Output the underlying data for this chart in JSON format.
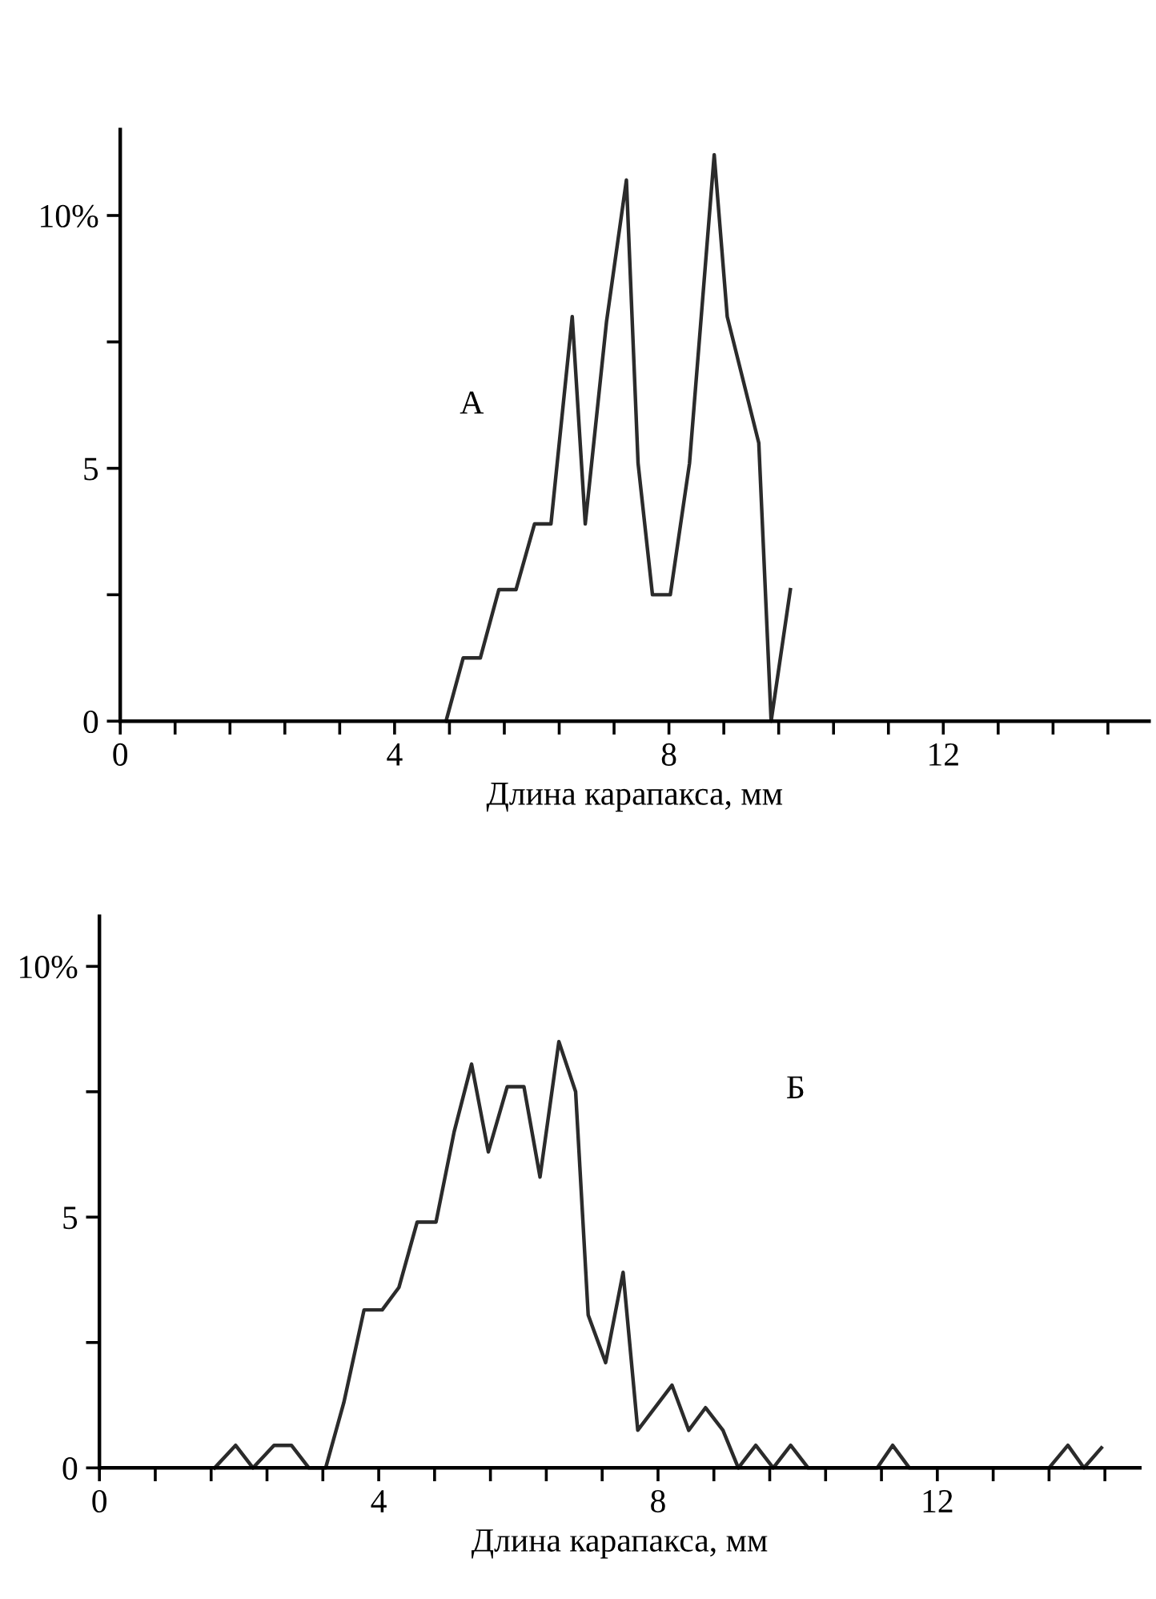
{
  "chart_data": [
    {
      "type": "line",
      "annotations": [
        "А"
      ],
      "xlabel": "Длина карапакса, мм",
      "xlim": [
        0,
        15
      ],
      "ylim": [
        0,
        11.7
      ],
      "xticks": [
        0,
        {
          "value": 0.8,
          "label": null
        },
        {
          "value": 1.6,
          "label": null
        },
        {
          "value": 2.4,
          "label": null
        },
        {
          "value": 3.2,
          "label": null
        },
        4,
        {
          "value": 4.8,
          "label": null
        },
        {
          "value": 5.6,
          "label": null
        },
        {
          "value": 6.4,
          "label": null
        },
        {
          "value": 7.2,
          "label": null
        },
        8,
        {
          "value": 8.8,
          "label": null
        },
        {
          "value": 9.6,
          "label": null
        },
        {
          "value": 10.4,
          "label": null
        },
        {
          "value": 11.2,
          "label": null
        },
        12,
        {
          "value": 12.8,
          "label": null
        },
        {
          "value": 13.6,
          "label": null
        },
        {
          "value": 14.4,
          "label": null
        }
      ],
      "yticks": [
        0,
        {
          "value": 2.5,
          "label": null
        },
        5,
        {
          "value": 7.5,
          "label": null
        },
        {
          "value": 10,
          "label": "10%"
        }
      ],
      "grid": false,
      "legend": false,
      "marker": "none",
      "line_style": "solid",
      "series": [
        {
          "color": "#2b2b2b",
          "x": [
            4.75,
            5.0,
            5.25,
            5.52,
            5.77,
            6.04,
            6.28,
            6.59,
            6.78,
            7.09,
            7.38,
            7.55,
            7.76,
            8.02,
            8.3,
            8.66,
            8.85,
            9.31,
            9.49,
            9.77
          ],
          "values": [
            0,
            1.25,
            1.25,
            2.6,
            2.6,
            3.9,
            3.9,
            8.0,
            3.9,
            7.9,
            10.7,
            5.1,
            2.5,
            2.5,
            5.1,
            11.2,
            8.0,
            5.5,
            0,
            2.6
          ]
        }
      ]
    },
    {
      "type": "line",
      "annotations": [
        "Б"
      ],
      "xlabel": "Длина карапакса, мм",
      "xlim": [
        0,
        14.9
      ],
      "ylim": [
        0,
        11
      ],
      "xticks": [
        0,
        {
          "value": 0.8,
          "label": null
        },
        {
          "value": 1.6,
          "label": null
        },
        {
          "value": 2.4,
          "label": null
        },
        {
          "value": 3.2,
          "label": null
        },
        4,
        {
          "value": 4.8,
          "label": null
        },
        {
          "value": 5.6,
          "label": null
        },
        {
          "value": 6.4,
          "label": null
        },
        {
          "value": 7.2,
          "label": null
        },
        8,
        {
          "value": 8.8,
          "label": null
        },
        {
          "value": 9.6,
          "label": null
        },
        {
          "value": 10.4,
          "label": null
        },
        {
          "value": 11.2,
          "label": null
        },
        12,
        {
          "value": 12.8,
          "label": null
        },
        {
          "value": 13.6,
          "label": null
        },
        {
          "value": 14.4,
          "label": null
        }
      ],
      "yticks": [
        0,
        {
          "value": 2.5,
          "label": null
        },
        5,
        {
          "value": 7.5,
          "label": null
        },
        {
          "value": 10,
          "label": "10%"
        }
      ],
      "grid": false,
      "legend": false,
      "marker": "none",
      "line_style": "solid",
      "series": [
        {
          "color": "#2b2b2b",
          "x": [
            1.65,
            1.95,
            2.2,
            2.5,
            2.75,
            3.0,
            3.24,
            3.5,
            3.79,
            4.05,
            4.29,
            4.55,
            4.82,
            5.08,
            5.33,
            5.57,
            5.84,
            6.08,
            6.31,
            6.58,
            6.82,
            7.0,
            7.25,
            7.5,
            7.71,
            8.2,
            8.44,
            8.68,
            8.93,
            9.15,
            9.4,
            9.65,
            9.9,
            10.15,
            11.14,
            11.36,
            11.6,
            13.6,
            13.87,
            14.1,
            14.35
          ],
          "values": [
            0,
            0.45,
            0,
            0.45,
            0.45,
            0,
            0,
            1.3,
            3.15,
            3.15,
            3.6,
            4.9,
            4.9,
            6.7,
            8.05,
            6.3,
            7.6,
            7.6,
            5.8,
            8.5,
            7.5,
            3.05,
            2.1,
            3.9,
            0.75,
            1.65,
            0.75,
            1.2,
            0.75,
            0,
            0.45,
            0,
            0.45,
            0,
            0,
            0.45,
            0,
            0,
            0.45,
            0,
            0.4
          ]
        }
      ]
    }
  ]
}
